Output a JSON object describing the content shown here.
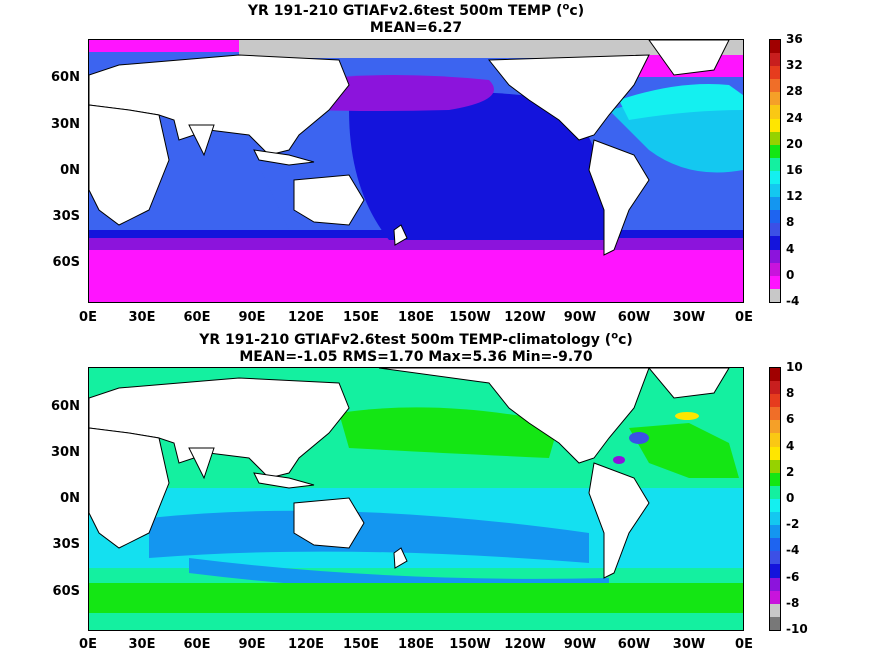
{
  "panels": [
    {
      "title_line1_a": "YR 191-210 GTIAFv2.6test 500m TEMP (",
      "title_line1_sup": "o",
      "title_line1_b": "c)",
      "title_line2": "MEAN=6.27",
      "lat_labels": [
        "60N",
        "30N",
        "0N",
        "30S",
        "60S"
      ],
      "lon_labels": [
        "0E",
        "30E",
        "60E",
        "90E",
        "120E",
        "150E",
        "180E",
        "150W",
        "120W",
        "90W",
        "60W",
        "30W",
        "0E"
      ],
      "colorbar": {
        "labels": [
          "36",
          "32",
          "28",
          "24",
          "20",
          "16",
          "12",
          "8",
          "4",
          "0",
          "-4"
        ],
        "colors": [
          "#a00000",
          "#c81e1e",
          "#e63c1e",
          "#f06e28",
          "#f5a028",
          "#fac814",
          "#ffe600",
          "#96d200",
          "#14e614",
          "#14f0a0",
          "#14f0f0",
          "#14c8f0",
          "#1496f0",
          "#1e64f0",
          "#3c50e6",
          "#1414dc",
          "#8c14dc",
          "#c814dc",
          "#ff14ff",
          "#c8c8c8"
        ]
      }
    },
    {
      "title_line1_a": "YR 191-210 GTIAFv2.6test 500m TEMP-climatology (",
      "title_line1_sup": "o",
      "title_line1_b": "c)",
      "title_line2": "MEAN=-1.05   RMS=1.70   Max=5.36   Min=-9.70",
      "lat_labels": [
        "60N",
        "30N",
        "0N",
        "30S",
        "60S"
      ],
      "lon_labels": [
        "0E",
        "30E",
        "60E",
        "90E",
        "120E",
        "150E",
        "180E",
        "150W",
        "120W",
        "90W",
        "60W",
        "30W",
        "0E"
      ],
      "colorbar": {
        "labels": [
          "10",
          "8",
          "6",
          "4",
          "2",
          "0",
          "-2",
          "-4",
          "-6",
          "-8",
          "-10"
        ],
        "colors": [
          "#a00000",
          "#c81e1e",
          "#e63c1e",
          "#f06e28",
          "#f5a028",
          "#fac814",
          "#ffe600",
          "#96d200",
          "#14e614",
          "#14f0a0",
          "#14f0f0",
          "#14c8f0",
          "#1496f0",
          "#1e64f0",
          "#3c50e6",
          "#1414dc",
          "#8c14dc",
          "#c814dc",
          "#c8c8c8",
          "#787878"
        ]
      }
    }
  ],
  "colors": {
    "land": "#ffffff",
    "coast": "#000000",
    "sea_ice": "#c8c8c8"
  }
}
